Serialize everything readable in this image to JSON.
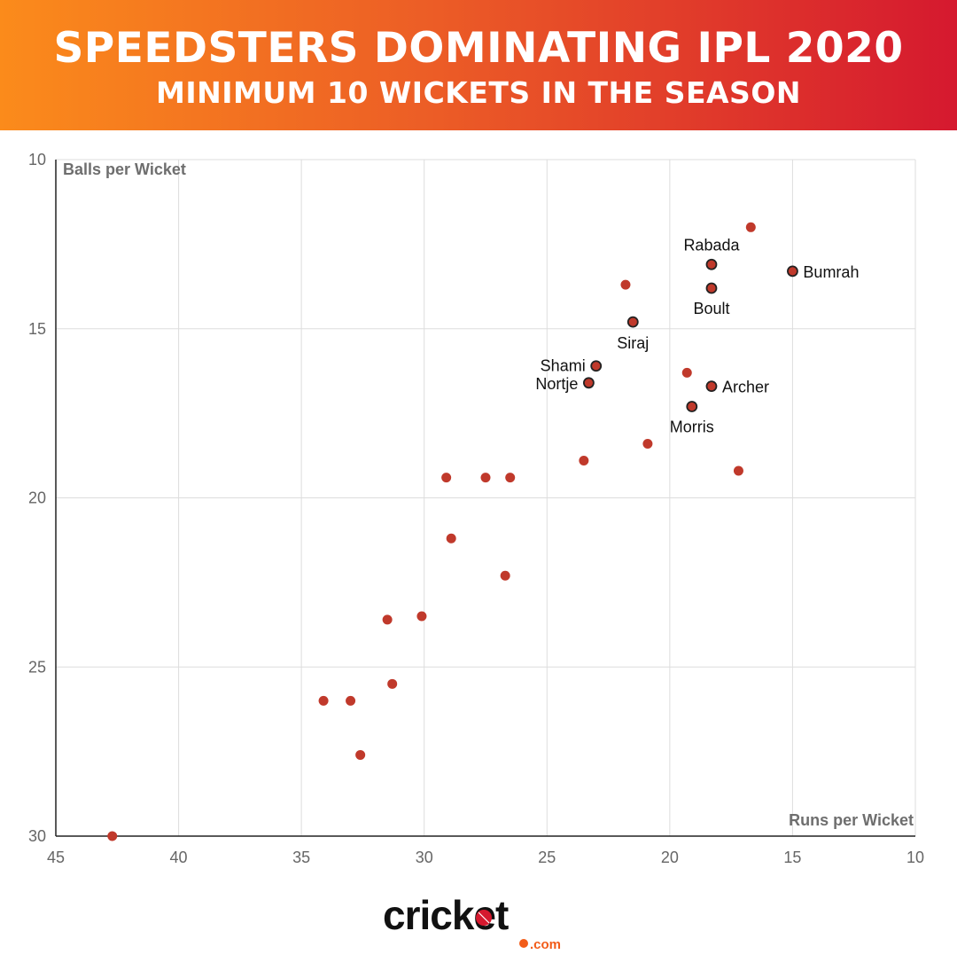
{
  "header": {
    "title": "SPEEDSTERS DOMINATING IPL 2020",
    "subtitle": "MINIMUM 10 WICKETS IN THE SEASON"
  },
  "chart_data": {
    "type": "scatter",
    "title": "SPEEDSTERS DOMINATING IPL 2020",
    "subtitle": "MINIMUM 10 WICKETS IN THE SEASON",
    "xlabel": "Runs per Wicket",
    "ylabel": "Balls per Wicket",
    "xlim": [
      45,
      10
    ],
    "ylim": [
      10,
      30
    ],
    "x_reversed": true,
    "y_reversed": true,
    "x_ticks": [
      45,
      40,
      35,
      30,
      25,
      20,
      15,
      10
    ],
    "y_ticks": [
      10,
      15,
      20,
      25,
      30
    ],
    "grid": true,
    "colors": {
      "point": "#c0392b",
      "highlight_outline": "#222222",
      "grid": "#dddddd",
      "axis": "#222222",
      "tick_text": "#666666"
    },
    "highlighted": [
      {
        "name": "Rabada",
        "x": 18.3,
        "y": 13.1
      },
      {
        "name": "Bumrah",
        "x": 15.0,
        "y": 13.3
      },
      {
        "name": "Boult",
        "x": 18.3,
        "y": 13.8
      },
      {
        "name": "Siraj",
        "x": 21.5,
        "y": 14.8
      },
      {
        "name": "Shami",
        "x": 23.0,
        "y": 16.1
      },
      {
        "name": "Nortje",
        "x": 23.3,
        "y": 16.6
      },
      {
        "name": "Archer",
        "x": 18.3,
        "y": 16.7
      },
      {
        "name": "Morris",
        "x": 19.1,
        "y": 17.3
      }
    ],
    "others": [
      {
        "x": 16.7,
        "y": 12.0
      },
      {
        "x": 21.8,
        "y": 13.7
      },
      {
        "x": 19.3,
        "y": 16.3
      },
      {
        "x": 20.9,
        "y": 18.4
      },
      {
        "x": 23.5,
        "y": 18.9
      },
      {
        "x": 17.2,
        "y": 19.2
      },
      {
        "x": 29.1,
        "y": 19.4
      },
      {
        "x": 27.5,
        "y": 19.4
      },
      {
        "x": 26.5,
        "y": 19.4
      },
      {
        "x": 28.9,
        "y": 21.2
      },
      {
        "x": 26.7,
        "y": 22.3
      },
      {
        "x": 30.1,
        "y": 23.5
      },
      {
        "x": 31.5,
        "y": 23.6
      },
      {
        "x": 31.3,
        "y": 25.5
      },
      {
        "x": 34.1,
        "y": 26.0
      },
      {
        "x": 33.0,
        "y": 26.0
      },
      {
        "x": 32.6,
        "y": 27.6
      },
      {
        "x": 42.7,
        "y": 30.0
      }
    ]
  },
  "brand": {
    "logo_text": "cricket",
    "logo_suffix": ".com"
  }
}
